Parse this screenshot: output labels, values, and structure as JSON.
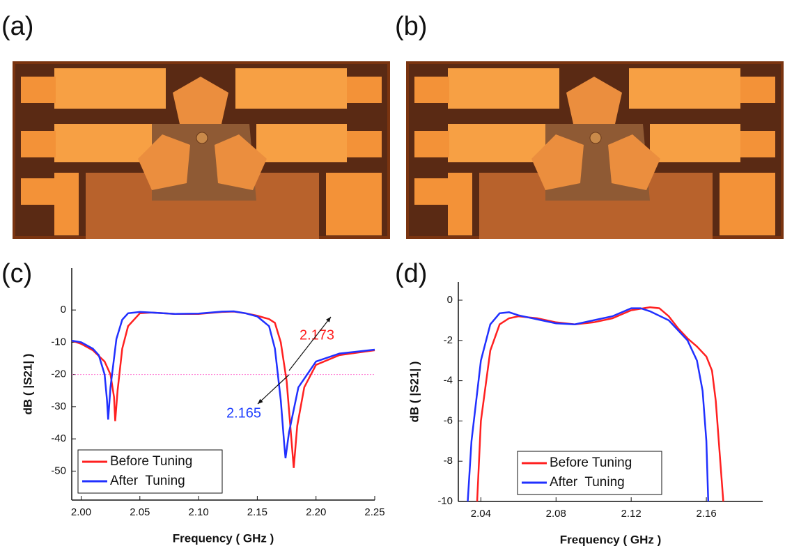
{
  "panel_labels": [
    "(a)",
    "(b)",
    "(c)",
    "(d)"
  ],
  "chart_data": [
    {
      "type": "line",
      "xlabel": "Frequency ( GHz )",
      "ylabel": "dB ( |S21| )",
      "xlim": [
        1.992,
        2.25
      ],
      "ylim": [
        -59,
        13
      ],
      "xticks": [
        {
          "value": 2.0,
          "label": "2.00"
        },
        2.05,
        {
          "value": 2.1,
          "label": "2.10"
        },
        2.15,
        {
          "value": 2.2,
          "label": "2.20"
        },
        2.25
      ],
      "yticks": [
        0,
        -10,
        -20,
        -30,
        -40,
        -50
      ],
      "hline": {
        "value": -20,
        "color": "#ff66cc"
      },
      "legend": "lower left",
      "annotations": [
        {
          "text": "2.173",
          "color": "#ff2020"
        },
        {
          "text": "2.165",
          "color": "#2040ff"
        }
      ],
      "series": [
        {
          "name": "Before Tuning",
          "color": "#ff2020",
          "x": [
            1.992,
            2.0,
            2.01,
            2.02,
            2.025,
            2.028,
            2.029,
            2.031,
            2.035,
            2.04,
            2.05,
            2.06,
            2.08,
            2.1,
            2.12,
            2.13,
            2.14,
            2.15,
            2.16,
            2.165,
            2.17,
            2.175,
            2.179,
            2.181,
            2.184,
            2.19,
            2.2,
            2.22,
            2.25
          ],
          "values": [
            -9.5,
            -10.5,
            -12.5,
            -16,
            -20,
            -27,
            -34.5,
            -25,
            -12,
            -5,
            -1,
            -0.8,
            -1.2,
            -1.2,
            -0.6,
            -0.5,
            -1,
            -1.8,
            -2.8,
            -4,
            -10,
            -22,
            -40,
            -49,
            -36,
            -24,
            -17,
            -14,
            -12.5
          ]
        },
        {
          "name": "After  Tuning",
          "color": "#2030ff",
          "x": [
            1.992,
            2.0,
            2.01,
            2.015,
            2.02,
            2.022,
            2.023,
            2.025,
            2.03,
            2.035,
            2.04,
            2.05,
            2.06,
            2.08,
            2.1,
            2.12,
            2.13,
            2.14,
            2.15,
            2.16,
            2.165,
            2.17,
            2.173,
            2.174,
            2.177,
            2.185,
            2.2,
            2.22,
            2.25
          ],
          "values": [
            -9.5,
            -10,
            -12,
            -14,
            -20,
            -28,
            -34,
            -24,
            -9,
            -3,
            -1,
            -0.6,
            -0.8,
            -1.2,
            -1.1,
            -0.5,
            -0.4,
            -1,
            -2,
            -5,
            -12,
            -28,
            -42,
            -46,
            -38,
            -24,
            -16,
            -13.5,
            -12.3
          ]
        }
      ]
    },
    {
      "type": "line",
      "xlabel": "Frequency ( GHz )",
      "ylabel": "dB ( |S21| )",
      "xlim": [
        2.028,
        2.19
      ],
      "ylim": [
        -10,
        0.9
      ],
      "xticks": [
        2.04,
        2.08,
        2.12,
        2.16
      ],
      "yticks": [
        0,
        -2,
        -4,
        -6,
        -8,
        -10
      ],
      "legend": "lower center",
      "series": [
        {
          "name": "Before Tuning",
          "color": "#ff2020",
          "x": [
            2.038,
            2.04,
            2.045,
            2.05,
            2.055,
            2.06,
            2.07,
            2.08,
            2.09,
            2.1,
            2.11,
            2.12,
            2.13,
            2.135,
            2.14,
            2.145,
            2.15,
            2.155,
            2.16,
            2.163,
            2.165,
            2.167,
            2.169
          ],
          "values": [
            -10,
            -6,
            -2.5,
            -1.2,
            -0.9,
            -0.8,
            -0.9,
            -1.1,
            -1.2,
            -1.1,
            -0.9,
            -0.5,
            -0.35,
            -0.4,
            -0.8,
            -1.4,
            -1.9,
            -2.3,
            -2.8,
            -3.5,
            -5,
            -7.5,
            -10
          ]
        },
        {
          "name": "After  Tuning",
          "color": "#2030ff",
          "x": [
            2.033,
            2.035,
            2.04,
            2.045,
            2.05,
            2.055,
            2.06,
            2.07,
            2.08,
            2.09,
            2.1,
            2.11,
            2.12,
            2.125,
            2.13,
            2.14,
            2.15,
            2.155,
            2.158,
            2.16,
            2.161
          ],
          "values": [
            -10,
            -7,
            -3,
            -1.2,
            -0.65,
            -0.6,
            -0.75,
            -0.95,
            -1.15,
            -1.2,
            -1.0,
            -0.8,
            -0.4,
            -0.4,
            -0.55,
            -1.0,
            -2.0,
            -3.0,
            -4.5,
            -7,
            -10
          ]
        }
      ]
    }
  ]
}
